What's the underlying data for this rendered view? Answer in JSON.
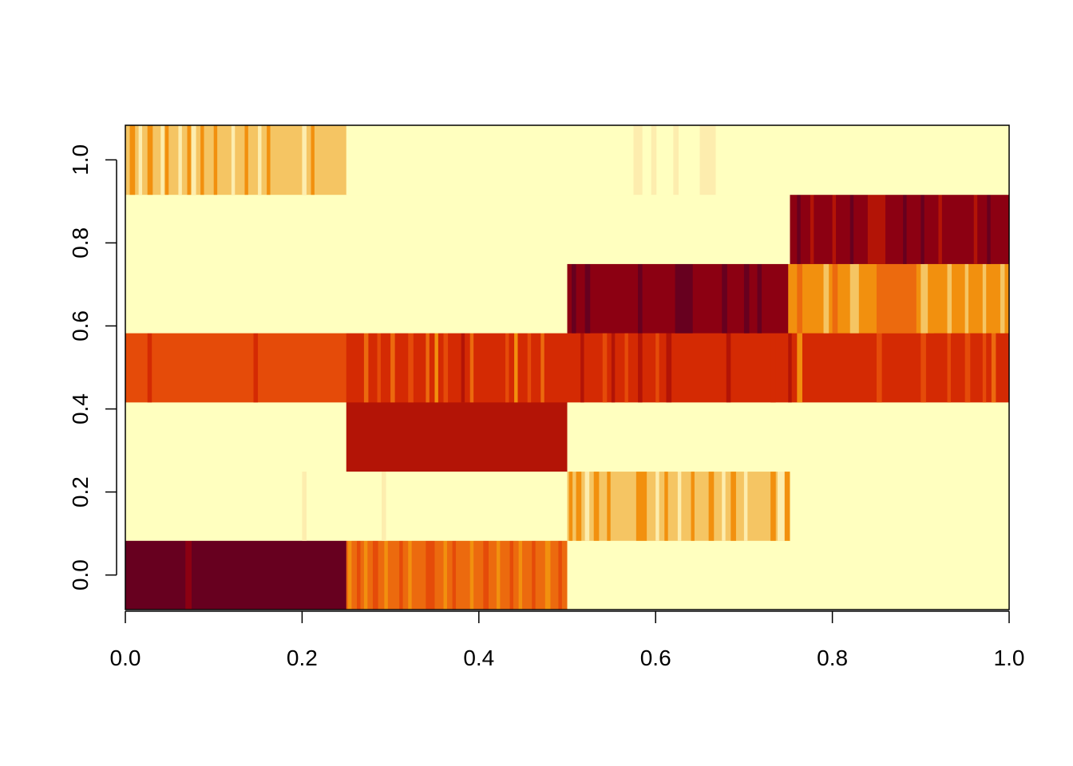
{
  "chart_data": {
    "type": "heatmap",
    "title": "",
    "xlabel": "",
    "ylabel": "",
    "xlim": [
      0,
      1
    ],
    "ylim": [
      -0.0833,
      1.0833
    ],
    "x_ticks": [
      "0.0",
      "0.2",
      "0.4",
      "0.6",
      "0.8",
      "1.0"
    ],
    "y_ticks": [
      "0.0",
      "0.2",
      "0.4",
      "0.6",
      "0.8",
      "1.0"
    ],
    "x_tick_values": [
      0,
      0.2,
      0.4,
      0.6,
      0.8,
      1.0
    ],
    "y_tick_values": [
      0,
      0.2,
      0.4,
      0.6,
      0.8,
      1.0
    ],
    "color_scale": "heat (dark red = high, pale yellow = low)",
    "palette": [
      "#67001F",
      "#8C0012",
      "#B31406",
      "#D42A03",
      "#E54B09",
      "#EC6A0E",
      "#F2900E",
      "#F5C563",
      "#FDEDAE",
      "#FFFFBF"
    ],
    "grid": false,
    "rows": [
      {
        "y": 0.0,
        "segments": [
          {
            "x0": 0.0,
            "x1": 0.25,
            "level": 0,
            "stripes": [
              {
                "x": 0.07,
                "w": 0.006,
                "level": 1
              }
            ]
          },
          {
            "x0": 0.25,
            "x1": 0.5,
            "level": 5,
            "stripes": [
              {
                "x": 0.255,
                "w": 0.004,
                "level": 6
              },
              {
                "x": 0.27,
                "w": 0.004,
                "level": 4
              },
              {
                "x": 0.283,
                "w": 0.006,
                "level": 6
              },
              {
                "x": 0.31,
                "w": 0.004,
                "level": 4
              },
              {
                "x": 0.33,
                "w": 0.005,
                "level": 6
              },
              {
                "x": 0.345,
                "w": 0.012,
                "level": 4
              },
              {
                "x": 0.37,
                "w": 0.004,
                "level": 6
              },
              {
                "x": 0.39,
                "w": 0.004,
                "level": 4
              },
              {
                "x": 0.42,
                "w": 0.004,
                "level": 6
              },
              {
                "x": 0.44,
                "w": 0.005,
                "level": 4
              },
              {
                "x": 0.46,
                "w": 0.004,
                "level": 6
              },
              {
                "x": 0.48,
                "w": 0.006,
                "level": 4
              }
            ]
          },
          {
            "x0": 0.5,
            "x1": 1.0,
            "level": 9,
            "stripes": []
          }
        ]
      },
      {
        "y": 1.0,
        "segments": []
      }
    ]
  }
}
